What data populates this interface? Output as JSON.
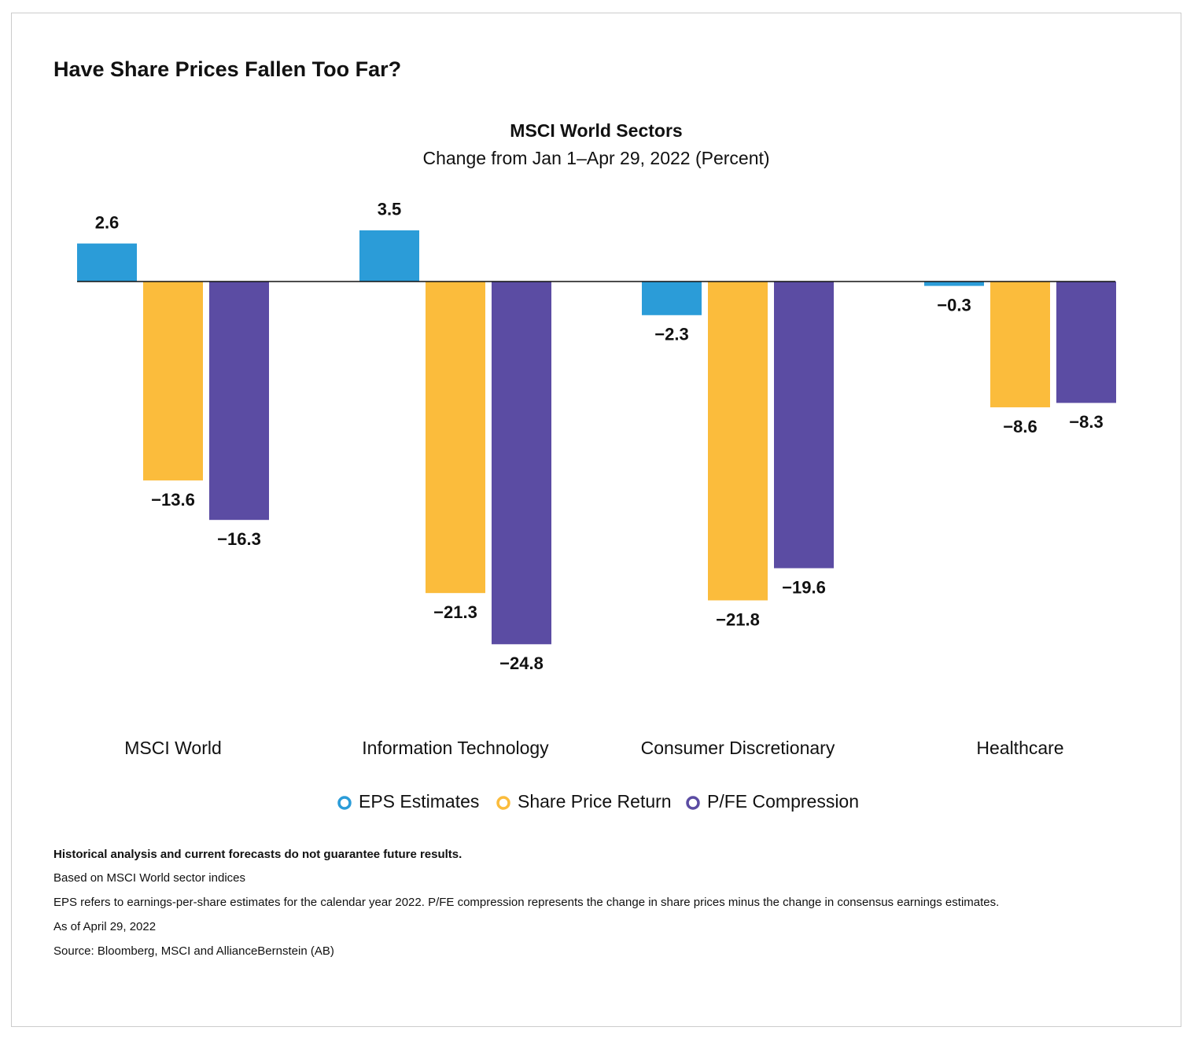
{
  "heading": "Have Share Prices Fallen Too Far?",
  "chart_data": {
    "type": "bar",
    "title": "MSCI  World Sectors",
    "subtitle": "Change from Jan 1–Apr 29, 2022 (Percent)",
    "categories": [
      "MSCI World",
      "Information Technology",
      "Consumer Discretionary",
      "Healthcare"
    ],
    "series": [
      {
        "name": "EPS Estimates",
        "color": "#2b9cd8",
        "values": [
          2.6,
          3.5,
          -2.3,
          -0.3
        ],
        "value_labels": [
          "2.6",
          "3.5",
          "−2.3",
          "−0.3"
        ]
      },
      {
        "name": "Share Price Return",
        "color": "#fbbc3c",
        "values": [
          -13.6,
          -21.3,
          -21.8,
          -8.6
        ],
        "value_labels": [
          "−13.6",
          "−21.3",
          "−21.8",
          "−8.6"
        ]
      },
      {
        "name": "P/FE Compression",
        "color": "#5b4ca3",
        "values": [
          -16.3,
          -24.8,
          -19.6,
          -8.3
        ],
        "value_labels": [
          "−16.3",
          "−24.8",
          "−19.6",
          "−8.3"
        ]
      }
    ]
  },
  "notes": [
    "Historical analysis and current forecasts do not guarantee future results.",
    "Based on MSCI World sector indices",
    "EPS refers to earnings-per-share estimates for the calendar year 2022. P/FE compression represents the change in share prices minus the change in consensus earnings estimates.",
    "As of April 29, 2022",
    "Source: Bloomberg, MSCI and AllianceBernstein (AB)"
  ]
}
